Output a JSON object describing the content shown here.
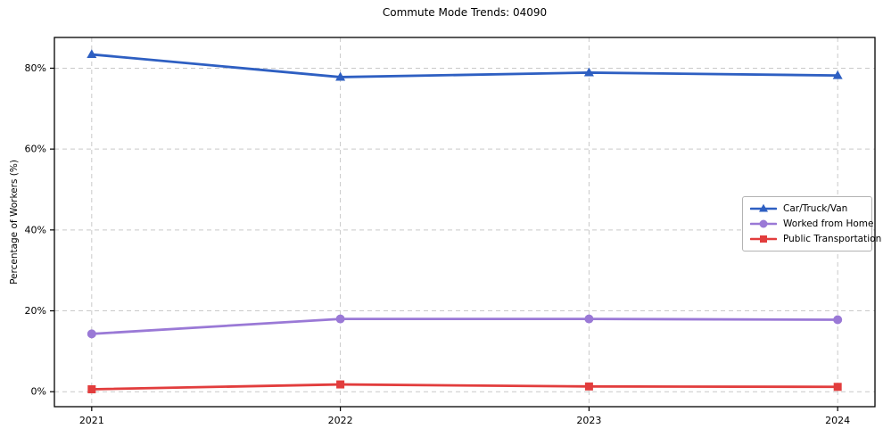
{
  "chart_data": {
    "type": "line",
    "title": "Commute Mode Trends: 04090",
    "xlabel": "",
    "ylabel": "Percentage of Workers (%)",
    "x": [
      2021,
      2022,
      2023,
      2024
    ],
    "x_labels": [
      "2021",
      "2022",
      "2023",
      "2024"
    ],
    "series": [
      {
        "name": "Car/Truck/Van",
        "values": [
          83.4,
          77.8,
          78.9,
          78.2
        ],
        "color": "#2e5fc2",
        "marker": "triangle"
      },
      {
        "name": "Worked from Home",
        "values": [
          14.3,
          18.0,
          18.0,
          17.8
        ],
        "color": "#9a79d6",
        "marker": "circle"
      },
      {
        "name": "Public Transportation",
        "values": [
          0.6,
          1.8,
          1.3,
          1.2
        ],
        "color": "#e23d3d",
        "marker": "square"
      }
    ],
    "yticks": [
      0,
      20,
      40,
      60,
      80
    ],
    "ytick_labels": [
      "0%",
      "20%",
      "40%",
      "60%",
      "80%"
    ],
    "ylim": [
      -3.7,
      87.6
    ],
    "xlim": [
      2020.85,
      2024.15
    ],
    "grid": "dashed-both-axes",
    "legend_position": "center-right",
    "colors": {
      "grid": "#c9c9c9",
      "frame": "#000000",
      "text": "#000000",
      "background": "#ffffff"
    }
  }
}
